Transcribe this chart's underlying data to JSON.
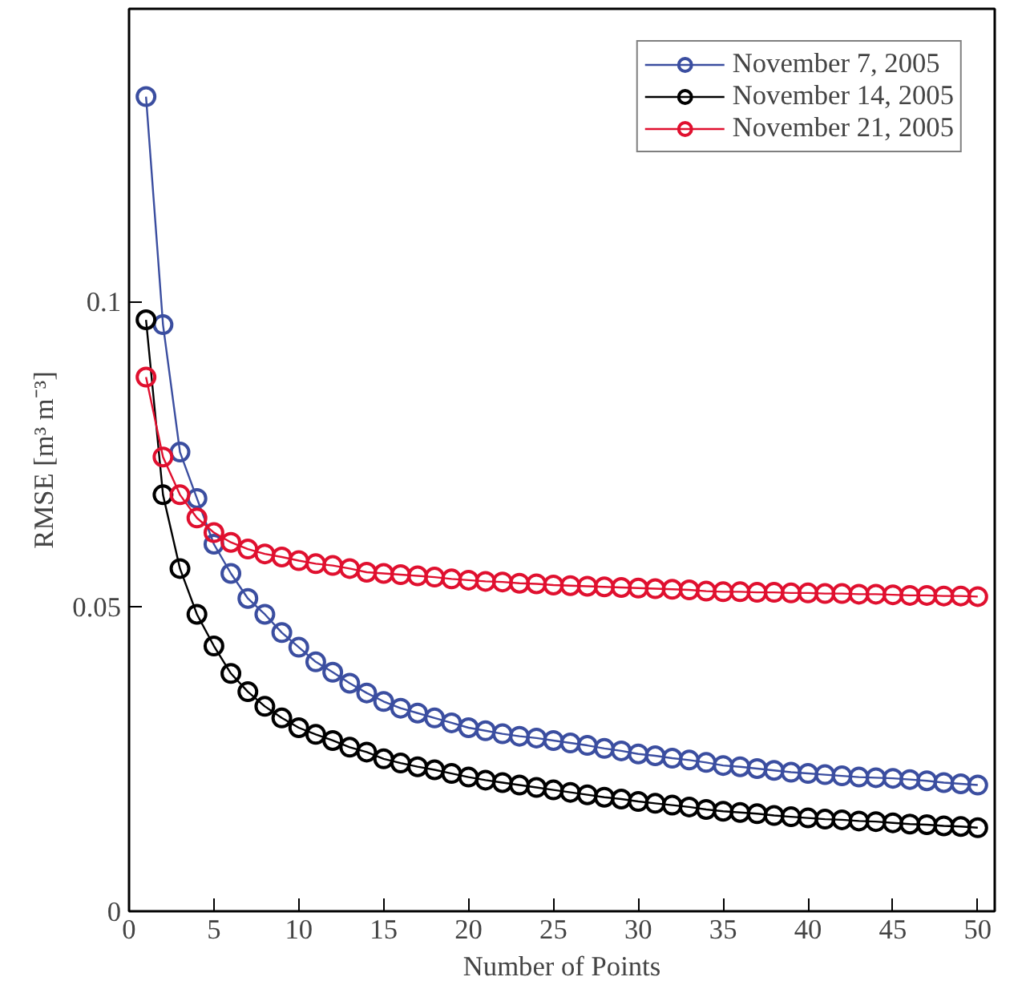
{
  "chart_data": {
    "type": "line",
    "xlabel": "Number of Points",
    "ylabel": "RMSE [m³ m⁻³]",
    "xlim": [
      0,
      51
    ],
    "ylim": [
      0,
      0.148
    ],
    "xticks": [
      0,
      5,
      10,
      15,
      20,
      25,
      30,
      35,
      40,
      45,
      50
    ],
    "yticks": [
      0,
      0.05,
      0.1
    ],
    "grid": false,
    "legend": "top right",
    "marker": "circle",
    "line_style": "solid",
    "x": [
      1,
      2,
      3,
      4,
      5,
      6,
      7,
      8,
      9,
      10,
      11,
      12,
      13,
      14,
      15,
      16,
      17,
      18,
      19,
      20,
      21,
      22,
      23,
      24,
      25,
      26,
      27,
      28,
      29,
      30,
      31,
      32,
      33,
      34,
      35,
      36,
      37,
      38,
      39,
      40,
      41,
      42,
      43,
      44,
      45,
      46,
      47,
      48,
      49,
      50
    ],
    "series": [
      {
        "name": "November 7, 2005",
        "color": "#3b4ea0",
        "values": [
          0.1336,
          0.0962,
          0.0753,
          0.0677,
          0.0602,
          0.0554,
          0.0513,
          0.0487,
          0.0457,
          0.0433,
          0.0409,
          0.0392,
          0.0374,
          0.0358,
          0.0344,
          0.0333,
          0.0325,
          0.0317,
          0.0309,
          0.0301,
          0.0296,
          0.0291,
          0.0287,
          0.0284,
          0.028,
          0.0276,
          0.0272,
          0.0267,
          0.0263,
          0.0258,
          0.0255,
          0.0251,
          0.0248,
          0.0244,
          0.0239,
          0.0237,
          0.0234,
          0.0231,
          0.0228,
          0.0226,
          0.0224,
          0.0222,
          0.022,
          0.0219,
          0.0218,
          0.0216,
          0.0214,
          0.0211,
          0.0209,
          0.0207
        ]
      },
      {
        "name": "November 14, 2005",
        "color": "#000000",
        "values": [
          0.097,
          0.0683,
          0.0562,
          0.0487,
          0.0435,
          0.039,
          0.036,
          0.0336,
          0.0317,
          0.0301,
          0.029,
          0.028,
          0.0269,
          0.0261,
          0.025,
          0.0243,
          0.0237,
          0.0232,
          0.0226,
          0.022,
          0.0215,
          0.0211,
          0.0207,
          0.0203,
          0.0199,
          0.0195,
          0.0191,
          0.0187,
          0.0184,
          0.018,
          0.0177,
          0.0174,
          0.0171,
          0.0167,
          0.0164,
          0.0162,
          0.016,
          0.0157,
          0.0155,
          0.0153,
          0.0151,
          0.015,
          0.0148,
          0.0147,
          0.0145,
          0.0143,
          0.0142,
          0.014,
          0.0139,
          0.0137
        ]
      },
      {
        "name": "November 21, 2005",
        "color": "#e0102f",
        "values": [
          0.0876,
          0.0745,
          0.0683,
          0.0645,
          0.0621,
          0.0605,
          0.0594,
          0.0586,
          0.0581,
          0.0575,
          0.057,
          0.0567,
          0.0562,
          0.0556,
          0.0554,
          0.0552,
          0.055,
          0.0548,
          0.0545,
          0.0543,
          0.0541,
          0.054,
          0.0538,
          0.0537,
          0.0535,
          0.0534,
          0.0533,
          0.0532,
          0.0531,
          0.053,
          0.0529,
          0.0528,
          0.0527,
          0.0525,
          0.0524,
          0.0524,
          0.0523,
          0.0523,
          0.0522,
          0.0522,
          0.0521,
          0.0521,
          0.052,
          0.052,
          0.0519,
          0.0518,
          0.0518,
          0.0517,
          0.0517,
          0.0516
        ]
      }
    ]
  }
}
